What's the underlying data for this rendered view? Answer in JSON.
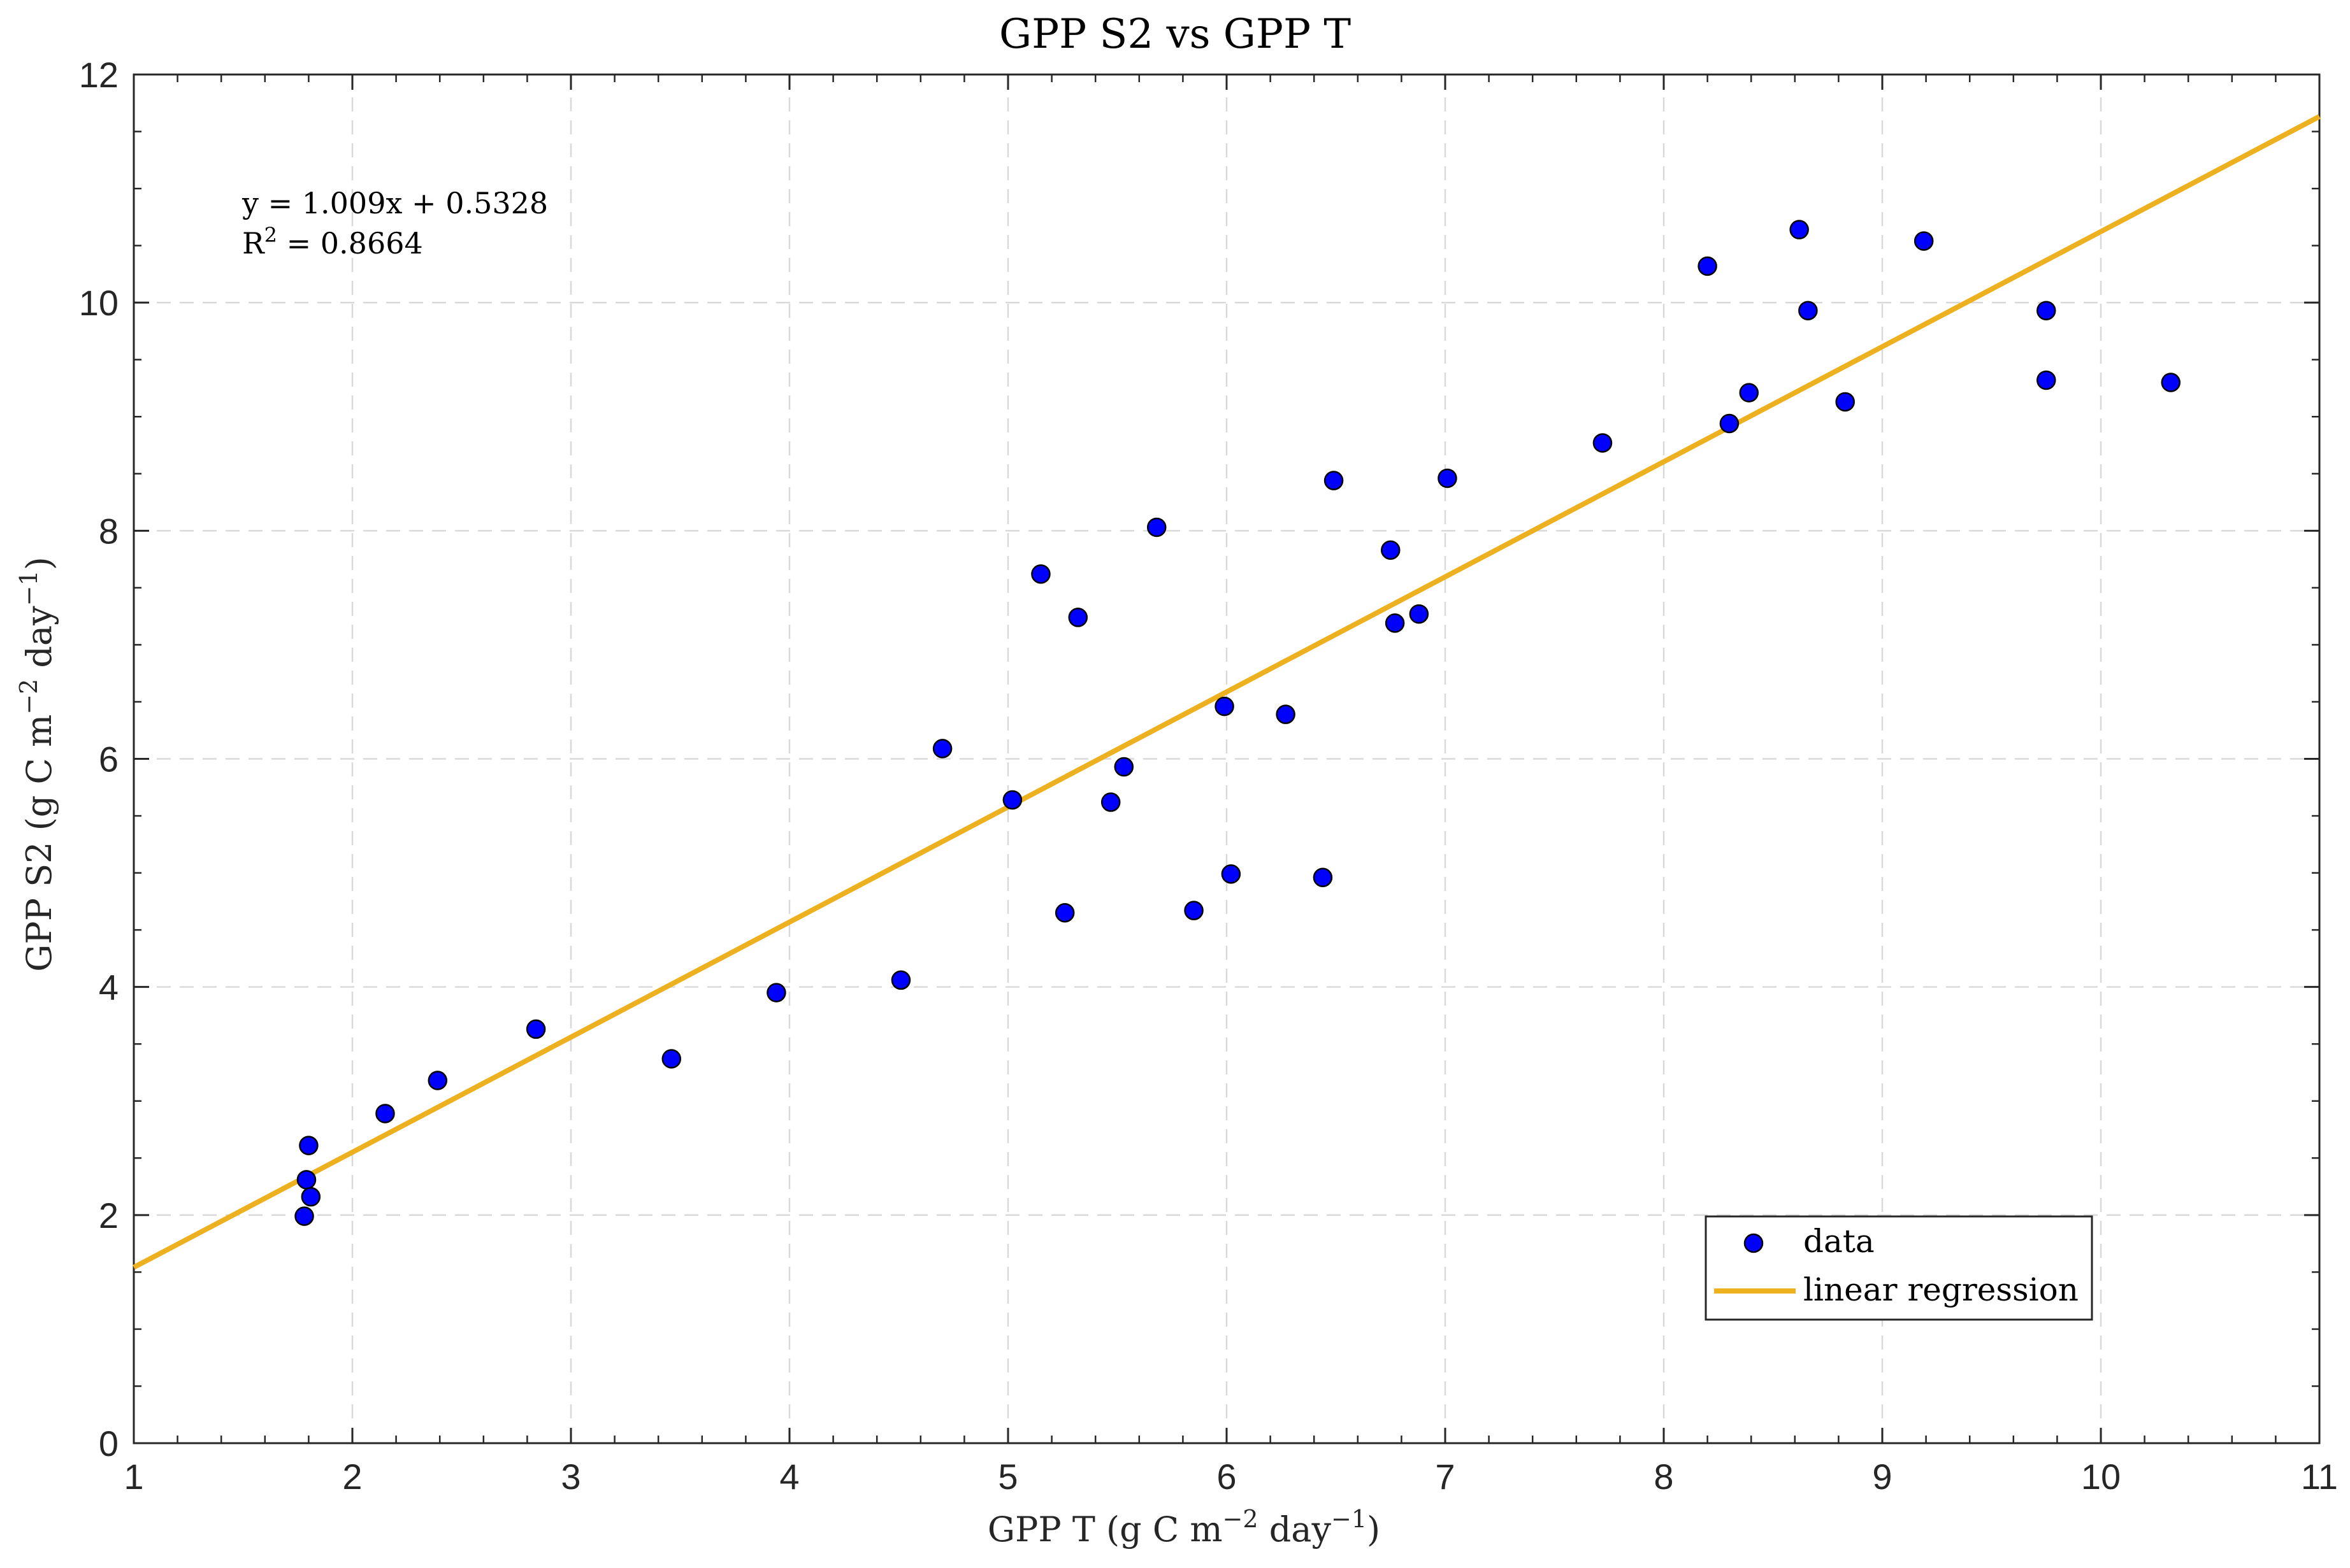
{
  "chart_data": {
    "type": "scatter",
    "title": "GPP S2 vs GPP T",
    "xlabel": {
      "prefix": "GPP T (g C m",
      "exp1": "−2",
      "mid": " day",
      "exp2": "−1",
      "suffix": ")"
    },
    "ylabel": {
      "prefix": "GPP S2 (g C m",
      "exp1": "−2",
      "mid": " day",
      "exp2": "−1",
      "suffix": ")"
    },
    "xlim": [
      1,
      11
    ],
    "ylim": [
      0,
      12
    ],
    "xticks": [
      1,
      2,
      3,
      4,
      5,
      6,
      7,
      8,
      9,
      10,
      11
    ],
    "yticks": [
      0,
      2,
      4,
      6,
      8,
      10,
      12
    ],
    "grid": true,
    "regression": {
      "slope": 1.009,
      "intercept": 0.5328
    },
    "annotation": {
      "equation": "y = 1.009x + 0.5328",
      "r2_prefix": "R",
      "r2_exp": "2",
      "r2_value": " = 0.8664"
    },
    "legend": {
      "position": "bottom-right",
      "entries": [
        "data",
        "linear regression"
      ]
    },
    "colors": {
      "data": "#0000ff",
      "regression": "#edb120",
      "grid": "#d9d9d9"
    },
    "series": [
      {
        "name": "data",
        "points": [
          [
            1.78,
            1.99
          ],
          [
            1.79,
            2.31
          ],
          [
            1.81,
            2.16
          ],
          [
            1.8,
            2.61
          ],
          [
            2.15,
            2.89
          ],
          [
            2.39,
            3.18
          ],
          [
            2.84,
            3.63
          ],
          [
            3.46,
            3.37
          ],
          [
            3.94,
            3.95
          ],
          [
            4.51,
            4.06
          ],
          [
            4.7,
            6.09
          ],
          [
            5.02,
            5.64
          ],
          [
            5.15,
            7.62
          ],
          [
            5.26,
            4.65
          ],
          [
            5.32,
            7.24
          ],
          [
            5.47,
            5.62
          ],
          [
            5.53,
            5.93
          ],
          [
            5.68,
            8.03
          ],
          [
            5.85,
            4.67
          ],
          [
            5.99,
            6.46
          ],
          [
            6.02,
            4.99
          ],
          [
            6.27,
            6.39
          ],
          [
            6.44,
            4.96
          ],
          [
            6.49,
            8.44
          ],
          [
            6.75,
            7.83
          ],
          [
            6.77,
            7.19
          ],
          [
            6.88,
            7.27
          ],
          [
            7.01,
            8.46
          ],
          [
            7.72,
            8.77
          ],
          [
            8.2,
            10.32
          ],
          [
            8.3,
            8.94
          ],
          [
            8.39,
            9.21
          ],
          [
            8.62,
            10.64
          ],
          [
            8.66,
            9.93
          ],
          [
            8.83,
            9.13
          ],
          [
            9.19,
            10.54
          ],
          [
            9.75,
            9.93
          ],
          [
            9.75,
            9.32
          ],
          [
            10.32,
            9.3
          ]
        ]
      }
    ]
  }
}
